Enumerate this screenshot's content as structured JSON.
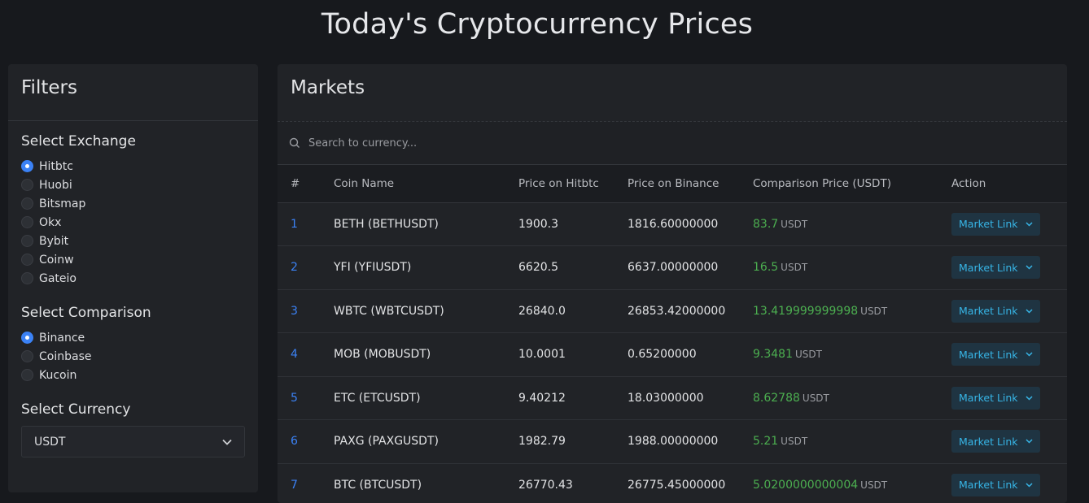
{
  "page": {
    "title": "Today's Cryptocurrency Prices"
  },
  "filters": {
    "title": "Filters",
    "exchange": {
      "title": "Select Exchange",
      "options": [
        "Hitbtc",
        "Huobi",
        "Bitsmap",
        "Okx",
        "Bybit",
        "Coinw",
        "Gateio"
      ],
      "selected": "Hitbtc"
    },
    "comparison": {
      "title": "Select Comparison",
      "options": [
        "Binance",
        "Coinbase",
        "Kucoin"
      ],
      "selected": "Binance"
    },
    "currency": {
      "title": "Select Currency",
      "value": "USDT"
    }
  },
  "markets": {
    "title": "Markets",
    "search": {
      "placeholder": "Search to currency..."
    },
    "columns": [
      "#",
      "Coin Name",
      "Price on Hitbtc",
      "Price on Binance",
      "Comparison Price (USDT)",
      "Action"
    ],
    "action_label": "Market Link",
    "rows": [
      {
        "index": "1",
        "coin": "BETH (BETHUSDT)",
        "price_a": "1900.3",
        "price_b": "1816.60000000",
        "cmp": "83.7",
        "unit": "USDT"
      },
      {
        "index": "2",
        "coin": "YFI (YFIUSDT)",
        "price_a": "6620.5",
        "price_b": "6637.00000000",
        "cmp": "16.5",
        "unit": "USDT"
      },
      {
        "index": "3",
        "coin": "WBTC (WBTCUSDT)",
        "price_a": "26840.0",
        "price_b": "26853.42000000",
        "cmp": "13.419999999998",
        "unit": "USDT"
      },
      {
        "index": "4",
        "coin": "MOB (MOBUSDT)",
        "price_a": "10.0001",
        "price_b": "0.65200000",
        "cmp": "9.3481",
        "unit": "USDT"
      },
      {
        "index": "5",
        "coin": "ETC (ETCUSDT)",
        "price_a": "9.40212",
        "price_b": "18.03000000",
        "cmp": "8.62788",
        "unit": "USDT"
      },
      {
        "index": "6",
        "coin": "PAXG (PAXGUSDT)",
        "price_a": "1982.79",
        "price_b": "1988.00000000",
        "cmp": "5.21",
        "unit": "USDT"
      },
      {
        "index": "7",
        "coin": "BTC (BTCUSDT)",
        "price_a": "26770.43",
        "price_b": "26775.45000000",
        "cmp": "5.0200000000004",
        "unit": "USDT"
      }
    ]
  },
  "colors": {
    "accent": "#3b82f6",
    "positive": "#4caf50",
    "link_button": "#37b5e6"
  },
  "icons": {
    "search": "search-icon",
    "chevron": "chevron-down-icon"
  }
}
